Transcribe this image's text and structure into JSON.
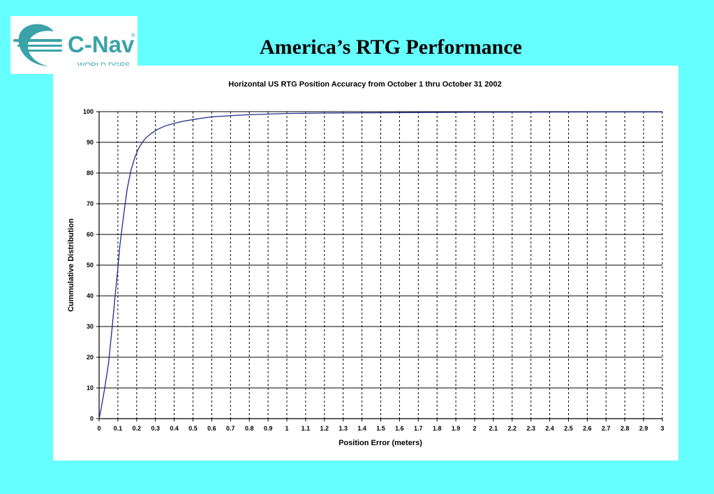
{
  "slide": {
    "title": "America’s RTG Performance"
  },
  "logo": {
    "brand": "C-Nav",
    "tagline": "WORLD DGPS",
    "registered_mark": "®",
    "color": "#3aa3a8"
  },
  "colors": {
    "background": "#66ffff",
    "panel": "#ffffff",
    "line": "#1f2a8c",
    "grid": "#000000"
  },
  "chart_data": {
    "type": "line",
    "title": "Horizontal US RTG Position Accuracy from October 1 thru October 31 2002",
    "xlabel": "Position Error (meters)",
    "ylabel": "Cummulative Distribution",
    "xlim": [
      0,
      3
    ],
    "ylim": [
      0,
      100
    ],
    "x_ticks": [
      "0",
      "0.1",
      "0.2",
      "0.3",
      "0.4",
      "0.5",
      "0.6",
      "0.7",
      "0.8",
      "0.9",
      "1",
      "1.1",
      "1.2",
      "1.3",
      "1.4",
      "1.5",
      "1.6",
      "1.7",
      "1.8",
      "1.9",
      "2",
      "2.1",
      "2.2",
      "2.3",
      "2.4",
      "2.5",
      "2.6",
      "2.7",
      "2.8",
      "2.9",
      "3"
    ],
    "y_ticks": [
      "0",
      "10",
      "20",
      "30",
      "40",
      "50",
      "60",
      "70",
      "80",
      "90",
      "100"
    ],
    "grid": {
      "vertical": "dashed",
      "horizontal": "solid"
    },
    "series": [
      {
        "x": [
          0,
          0.01,
          0.03,
          0.05,
          0.07,
          0.09,
          0.1,
          0.11,
          0.13,
          0.15,
          0.17,
          0.19,
          0.21,
          0.23,
          0.25,
          0.28,
          0.31,
          0.35,
          0.4,
          0.45,
          0.5,
          0.55,
          0.6,
          0.7,
          0.8,
          0.9,
          1.0,
          1.2,
          1.5,
          1.8,
          2.0,
          2.4,
          2.7,
          3.0
        ],
        "y": [
          0,
          3,
          10,
          18,
          30,
          43,
          49,
          56,
          66,
          75,
          81,
          85,
          88,
          90,
          91.5,
          93,
          94.2,
          95.3,
          96.2,
          96.9,
          97.4,
          97.9,
          98.3,
          98.7,
          99.0,
          99.2,
          99.4,
          99.55,
          99.65,
          99.75,
          99.8,
          99.85,
          99.9,
          99.9
        ]
      }
    ]
  }
}
